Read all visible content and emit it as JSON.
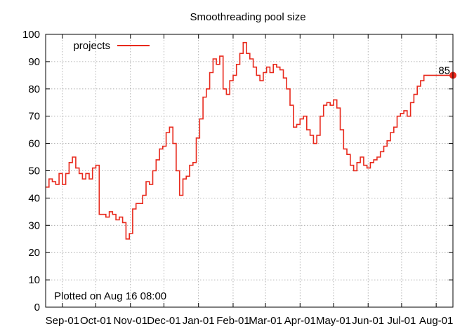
{
  "chart_data": {
    "type": "line",
    "title": "Smoothreading pool size",
    "xlabel": "",
    "ylabel": "",
    "ylim": [
      0,
      100
    ],
    "yticks": [
      0,
      10,
      20,
      30,
      40,
      50,
      60,
      70,
      80,
      90,
      100
    ],
    "x_tick_labels": [
      "Sep-01",
      "Oct-01",
      "Nov-01",
      "Dec-01",
      "Jan-01",
      "Feb-01",
      "Mar-01",
      "Apr-01",
      "May-01",
      "Jun-01",
      "Jul-01",
      "Aug-01"
    ],
    "grid": true,
    "legend_position": "top-left",
    "series": [
      {
        "name": "projects",
        "color": "#e8291c",
        "x": [
          "2023-08-17",
          "2023-08-20",
          "2023-08-23",
          "2023-08-26",
          "2023-08-29",
          "2023-09-01",
          "2023-09-04",
          "2023-09-07",
          "2023-09-10",
          "2023-09-13",
          "2023-09-16",
          "2023-09-19",
          "2023-09-22",
          "2023-09-25",
          "2023-09-28",
          "2023-10-01",
          "2023-10-04",
          "2023-10-07",
          "2023-10-10",
          "2023-10-13",
          "2023-10-16",
          "2023-10-19",
          "2023-10-22",
          "2023-10-25",
          "2023-10-28",
          "2023-10-31",
          "2023-11-03",
          "2023-11-06",
          "2023-11-09",
          "2023-11-12",
          "2023-11-15",
          "2023-11-18",
          "2023-11-21",
          "2023-11-24",
          "2023-11-27",
          "2023-11-30",
          "2023-12-03",
          "2023-12-06",
          "2023-12-09",
          "2023-12-12",
          "2023-12-15",
          "2023-12-18",
          "2023-12-21",
          "2023-12-24",
          "2023-12-27",
          "2023-12-30",
          "2024-01-02",
          "2024-01-05",
          "2024-01-08",
          "2024-01-11",
          "2024-01-14",
          "2024-01-17",
          "2024-01-20",
          "2024-01-23",
          "2024-01-26",
          "2024-01-29",
          "2024-02-01",
          "2024-02-04",
          "2024-02-07",
          "2024-02-10",
          "2024-02-13",
          "2024-02-16",
          "2024-02-19",
          "2024-02-22",
          "2024-02-25",
          "2024-02-28",
          "2024-03-02",
          "2024-03-05",
          "2024-03-08",
          "2024-03-11",
          "2024-03-14",
          "2024-03-17",
          "2024-03-20",
          "2024-03-23",
          "2024-03-26",
          "2024-03-29",
          "2024-04-01",
          "2024-04-04",
          "2024-04-07",
          "2024-04-10",
          "2024-04-13",
          "2024-04-16",
          "2024-04-19",
          "2024-04-22",
          "2024-04-25",
          "2024-04-28",
          "2024-05-01",
          "2024-05-04",
          "2024-05-07",
          "2024-05-10",
          "2024-05-13",
          "2024-05-16",
          "2024-05-19",
          "2024-05-22",
          "2024-05-25",
          "2024-05-28",
          "2024-05-31",
          "2024-06-03",
          "2024-06-06",
          "2024-06-09",
          "2024-06-12",
          "2024-06-15",
          "2024-06-18",
          "2024-06-21",
          "2024-06-24",
          "2024-06-27",
          "2024-06-30",
          "2024-07-03",
          "2024-07-06",
          "2024-07-09",
          "2024-07-12",
          "2024-07-15",
          "2024-07-18",
          "2024-07-21",
          "2024-07-24",
          "2024-07-27",
          "2024-07-30",
          "2024-08-02",
          "2024-08-05",
          "2024-08-08",
          "2024-08-11",
          "2024-08-14",
          "2024-08-16"
        ],
        "values": [
          44,
          47,
          46,
          45,
          49,
          45,
          49,
          53,
          55,
          51,
          49,
          47,
          49,
          47,
          51,
          52,
          34,
          34,
          33,
          35,
          34,
          32,
          33,
          31,
          25,
          27,
          36,
          38,
          38,
          41,
          46,
          45,
          50,
          54,
          58,
          59,
          64,
          66,
          60,
          50,
          41,
          47,
          48,
          52,
          53,
          62,
          69,
          77,
          80,
          86,
          91,
          89,
          92,
          80,
          78,
          83,
          85,
          89,
          93,
          97,
          93,
          91,
          88,
          85,
          83,
          86,
          88,
          86,
          89,
          88,
          87,
          84,
          80,
          74,
          66,
          67,
          69,
          70,
          65,
          63,
          60,
          63,
          70,
          74,
          75,
          74,
          76,
          73,
          65,
          58,
          56,
          52,
          50,
          53,
          55,
          52,
          51,
          53,
          54,
          55,
          57,
          59,
          61,
          64,
          66,
          70,
          71,
          72,
          70,
          75,
          78,
          81,
          83,
          85,
          85,
          85,
          85,
          85,
          85,
          85,
          85,
          85,
          85
        ],
        "end_label": "85"
      }
    ],
    "annotations": [
      "Plotted on Aug 16 08:00"
    ]
  }
}
